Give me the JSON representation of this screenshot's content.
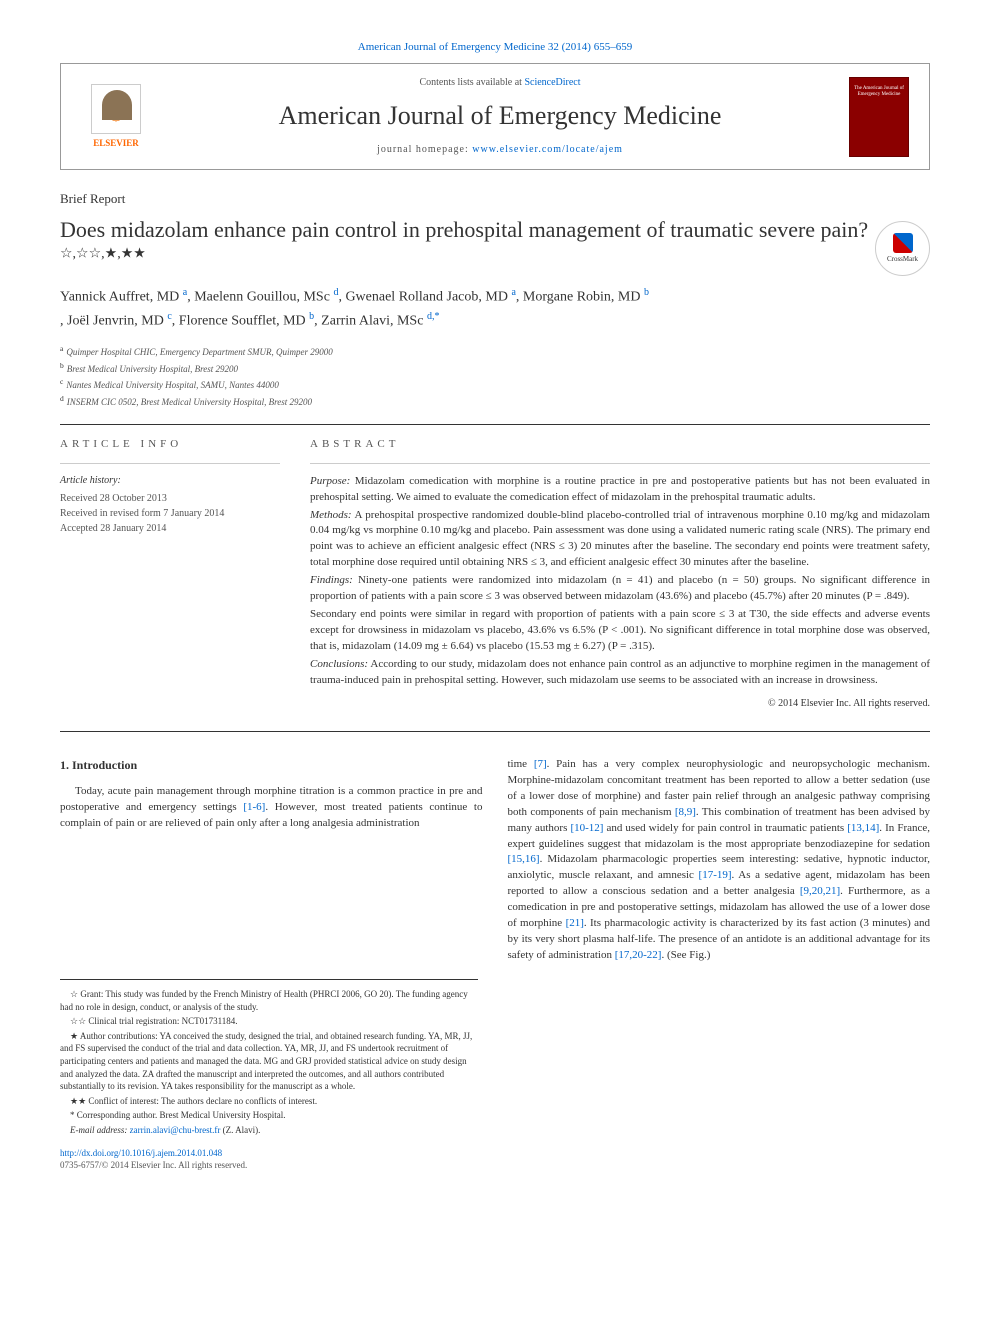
{
  "header": {
    "citation_link": "American Journal of Emergency Medicine 32 (2014) 655–659",
    "contents_text": "Contents lists available at ",
    "contents_link": "ScienceDirect",
    "journal_name": "American Journal of Emergency Medicine",
    "homepage_label": "journal homepage: ",
    "homepage_url": "www.elsevier.com/locate/ajem",
    "elsevier_label": "ELSEVIER",
    "cover_text": "The American Journal of Emergency Medicine"
  },
  "article": {
    "type": "Brief Report",
    "title": "Does midazolam enhance pain control in prehospital management of traumatic severe pain?",
    "title_symbols": "☆,☆☆,★,★★",
    "crossmark_label": "CrossMark"
  },
  "authors": {
    "list": "Yannick Auffret, MD ᵃ, Maelenn Gouillou, MSc ᵈ, Gwenael Rolland Jacob, MD ᵃ, Morgane Robin, MD ᵇ, Joël Jenvrin, MD ᶜ, Florence Soufflet, MD ᵇ, Zarrin Alavi, MSc ᵈ,*",
    "a1_html": "Yannick Auffret, MD ",
    "a1_sup": "a",
    "a2_html": ", Maelenn Gouillou, MSc ",
    "a2_sup": "d",
    "a3_html": ", Gwenael Rolland Jacob, MD ",
    "a3_sup": "a",
    "a4_html": ", Morgane Robin, MD ",
    "a4_sup": "b",
    "a5_html": ", Joël Jenvrin, MD ",
    "a5_sup": "c",
    "a6_html": ", Florence Soufflet, MD ",
    "a6_sup": "b",
    "a7_html": ", Zarrin Alavi, MSc ",
    "a7_sup": "d,*"
  },
  "affiliations": {
    "a": "Quimper Hospital CHIC, Emergency Department SMUR, Quimper 29000",
    "b": "Brest Medical University Hospital, Brest 29200",
    "c": "Nantes Medical University Hospital, SAMU, Nantes 44000",
    "d": "INSERM CIC 0502, Brest Medical University Hospital, Brest 29200"
  },
  "info": {
    "heading": "ARTICLE INFO",
    "history_label": "Article history:",
    "received": "Received 28 October 2013",
    "revised": "Received in revised form 7 January 2014",
    "accepted": "Accepted 28 January 2014"
  },
  "abstract": {
    "heading": "ABSTRACT",
    "purpose_label": "Purpose:",
    "purpose": " Midazolam comedication with morphine is a routine practice in pre and postoperative patients but has not been evaluated in prehospital setting. We aimed to evaluate the comedication effect of midazolam in the prehospital traumatic adults.",
    "methods_label": "Methods:",
    "methods": " A prehospital prospective randomized double-blind placebo-controlled trial of intravenous morphine 0.10 mg/kg and midazolam 0.04 mg/kg vs morphine 0.10 mg/kg and placebo. Pain assessment was done using a validated numeric rating scale (NRS). The primary end point was to achieve an efficient analgesic effect (NRS ≤ 3) 20 minutes after the baseline. The secondary end points were treatment safety, total morphine dose required until obtaining NRS ≤ 3, and efficient analgesic effect 30 minutes after the baseline.",
    "findings_label": "Findings:",
    "findings": " Ninety-one patients were randomized into midazolam (n = 41) and placebo (n = 50) groups. No significant difference in proportion of patients with a pain score ≤ 3 was observed between midazolam (43.6%) and placebo (45.7%) after 20 minutes (P = .849).",
    "findings2": "Secondary end points were similar in regard with proportion of patients with a pain score ≤ 3 at T30, the side effects and adverse events except for drowsiness in midazolam vs placebo, 43.6% vs 6.5% (P < .001). No significant difference in total morphine dose was observed, that is, midazolam (14.09 mg ± 6.64) vs placebo (15.53 mg ± 6.27) (P = .315).",
    "conclusions_label": "Conclusions:",
    "conclusions": " According to our study, midazolam does not enhance pain control as an adjunctive to morphine regimen in the management of trauma-induced pain in prehospital setting. However, such midazolam use seems to be associated with an increase in drowsiness.",
    "copyright": "© 2014 Elsevier Inc. All rights reserved."
  },
  "body": {
    "section_heading": "1. Introduction",
    "col1_p1": "Today, acute pain management through morphine titration is a common practice in pre and postoperative and emergency settings ",
    "col1_ref1": "[1-6]",
    "col1_p1b": ". However, most treated patients continue to complain of pain or are relieved of pain only after a long analgesia administration",
    "col2_p1": "time ",
    "col2_ref1": "[7]",
    "col2_p1b": ". Pain has a very complex neurophysiologic and neuropsychologic mechanism. Morphine-midazolam concomitant treatment has been reported to allow a better sedation (use of a lower dose of morphine) and faster pain relief through an analgesic pathway comprising both components of pain mechanism ",
    "col2_ref2": "[8,9]",
    "col2_p1c": ". This combination of treatment has been advised by many authors ",
    "col2_ref3": "[10-12]",
    "col2_p1d": " and used widely for pain control in traumatic patients ",
    "col2_ref4": "[13,14]",
    "col2_p1e": ". In France, expert guidelines suggest that midazolam is the most appropriate benzodiazepine for sedation ",
    "col2_ref5": "[15,16]",
    "col2_p1f": ". Midazolam pharmacologic properties seem interesting: sedative, hypnotic inductor, anxiolytic, muscle relaxant, and amnesic ",
    "col2_ref6": "[17-19]",
    "col2_p1g": ". As a sedative agent, midazolam has been reported to allow a conscious sedation and a better analgesia ",
    "col2_ref7": "[9,20,21]",
    "col2_p1h": ". Furthermore, as a comedication in pre and postoperative settings, midazolam has allowed the use of a lower dose of morphine ",
    "col2_ref8": "[21]",
    "col2_p1i": ". Its pharmacologic activity is characterized by its fast action (3 minutes) and by its very short plasma half-life. The presence of an antidote is an additional advantage for its safety of administration ",
    "col2_ref9": "[17,20-22]",
    "col2_p1j": ". (See Fig.)"
  },
  "footnotes": {
    "grant_sym": "☆",
    "grant": " Grant: This study was funded by the French Ministry of Health (PHRCI 2006, GO 20). The funding agency had no role in design, conduct, or analysis of the study.",
    "trial_sym": "☆☆",
    "trial": " Clinical trial registration: NCT01731184.",
    "contrib_sym": "★",
    "contrib": " Author contributions: YA conceived the study, designed the trial, and obtained research funding. YA, MR, JJ, and FS supervised the conduct of the trial and data collection. YA, MR, JJ, and FS undertook recruitment of participating centers and patients and managed the data. MG and GRJ provided statistical advice on study design and analyzed the data. ZA drafted the manuscript and interpreted the outcomes, and all authors contributed substantially to its revision. YA takes responsibility for the manuscript as a whole.",
    "conflict_sym": "★★",
    "conflict": " Conflict of interest: The authors declare no conflicts of interest.",
    "corr_sym": "*",
    "corr": " Corresponding author. Brest Medical University Hospital.",
    "email_label": "E-mail address: ",
    "email": "zarrin.alavi@chu-brest.fr",
    "email_suffix": " (Z. Alavi)."
  },
  "footer": {
    "doi": "http://dx.doi.org/10.1016/j.ajem.2014.01.048",
    "issn": "0735-6757/© 2014 Elsevier Inc. All rights reserved."
  },
  "colors": {
    "link": "#0066cc",
    "text": "#333333",
    "muted": "#555555",
    "elsevier_orange": "#ff6600",
    "cover_red": "#8b0000"
  }
}
